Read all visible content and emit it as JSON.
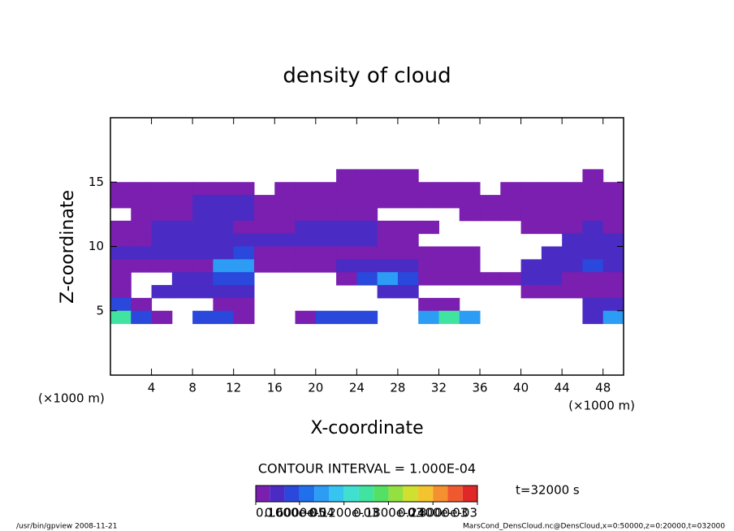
{
  "chart_data": {
    "type": "contour",
    "title": "density of cloud",
    "x_label": "X-coordinate",
    "y_label": "Z-coordinate",
    "x_unit": "(×1000 m)",
    "y_unit": "(×1000 m)",
    "contour_interval": "CONTOUR INTERVAL = 1.000E-04",
    "time_label": "t=32000 s",
    "footer_left": "/usr/bin/gpview  2008-11-21",
    "footer_right": "MarsCond_DensCloud.nc@DensCloud,x=0:50000,z=0:20000,t=032000",
    "xlim": [
      0,
      50
    ],
    "ylim": [
      0,
      20
    ],
    "xticks": [
      4,
      8,
      12,
      16,
      20,
      24,
      28,
      32,
      36,
      40,
      44,
      48
    ],
    "yticks": [
      5,
      10,
      15
    ],
    "x": [
      1,
      3,
      5,
      7,
      9,
      11,
      13,
      15,
      17,
      19,
      21,
      23,
      25,
      27,
      29,
      31,
      33,
      35,
      37,
      39,
      41,
      43,
      45,
      47,
      49
    ],
    "y": [
      15.5,
      14.5,
      13.5,
      12.5,
      11.5,
      10.5,
      9.5,
      8.5,
      7.5,
      6.5,
      5.5,
      4.5
    ],
    "values": [
      [
        0,
        0,
        0,
        0,
        0,
        0,
        0,
        0,
        0,
        0,
        0,
        1e-05,
        1e-05,
        1e-05,
        1e-05,
        0,
        0,
        0,
        0,
        0,
        0,
        0,
        0,
        1e-05,
        0
      ],
      [
        1e-05,
        1e-05,
        1e-05,
        1e-05,
        1e-05,
        1e-05,
        1e-05,
        0,
        1e-05,
        1e-05,
        1e-05,
        1e-05,
        1e-05,
        1e-05,
        1e-05,
        1e-05,
        1e-05,
        1e-05,
        0,
        1e-05,
        1e-05,
        1e-05,
        1e-05,
        1e-05,
        1e-05
      ],
      [
        1e-05,
        1e-05,
        1e-05,
        1e-05,
        3e-05,
        3e-05,
        3e-05,
        1e-05,
        1e-05,
        1e-05,
        1e-05,
        1e-05,
        1e-05,
        1e-05,
        1e-05,
        1e-05,
        1e-05,
        1e-05,
        1e-05,
        1e-05,
        1e-05,
        1e-05,
        1e-05,
        1e-05,
        1e-05
      ],
      [
        0,
        1e-05,
        1e-05,
        1e-05,
        3e-05,
        3e-05,
        3e-05,
        1e-05,
        1e-05,
        1e-05,
        1e-05,
        1e-05,
        1e-05,
        0,
        0,
        0,
        0,
        1e-05,
        1e-05,
        1e-05,
        1e-05,
        1e-05,
        1e-05,
        1e-05,
        1e-05
      ],
      [
        1e-05,
        1e-05,
        3e-05,
        3e-05,
        3e-05,
        3e-05,
        1e-05,
        1e-05,
        1e-05,
        3e-05,
        3e-05,
        3e-05,
        3e-05,
        1e-05,
        1e-05,
        1e-05,
        0,
        0,
        0,
        0,
        1e-05,
        1e-05,
        1e-05,
        3e-05,
        1e-05
      ],
      [
        1e-05,
        1e-05,
        3e-05,
        3e-05,
        3e-05,
        3e-05,
        3e-05,
        3e-05,
        3e-05,
        3e-05,
        3e-05,
        3e-05,
        3e-05,
        1e-05,
        1e-05,
        0,
        0,
        0,
        0,
        0,
        0,
        0,
        3e-05,
        3e-05,
        3e-05
      ],
      [
        3e-05,
        3e-05,
        3e-05,
        3e-05,
        3e-05,
        3e-05,
        5e-05,
        1e-05,
        1e-05,
        1e-05,
        1e-05,
        1e-05,
        1e-05,
        1e-05,
        1e-05,
        1e-05,
        1e-05,
        1e-05,
        0,
        0,
        0,
        3e-05,
        3e-05,
        3e-05,
        3e-05
      ],
      [
        1e-05,
        1e-05,
        1e-05,
        1e-05,
        1e-05,
        8e-05,
        8e-05,
        1e-05,
        1e-05,
        1e-05,
        1e-05,
        3e-05,
        3e-05,
        3e-05,
        3e-05,
        1e-05,
        1e-05,
        1e-05,
        0,
        0,
        3e-05,
        3e-05,
        3e-05,
        5e-05,
        3e-05
      ],
      [
        1e-05,
        0,
        0,
        3e-05,
        3e-05,
        5e-05,
        5e-05,
        0,
        0,
        0,
        0,
        1e-05,
        5e-05,
        8e-05,
        5e-05,
        1e-05,
        1e-05,
        1e-05,
        1e-05,
        1e-05,
        3e-05,
        3e-05,
        1e-05,
        1e-05,
        1e-05
      ],
      [
        1e-05,
        0,
        3e-05,
        3e-05,
        3e-05,
        3e-05,
        3e-05,
        0,
        0,
        0,
        0,
        0,
        0,
        3e-05,
        3e-05,
        0,
        0,
        0,
        0,
        0,
        1e-05,
        1e-05,
        1e-05,
        1e-05,
        1e-05
      ],
      [
        5e-05,
        1e-05,
        0,
        0,
        0,
        1e-05,
        1e-05,
        0,
        0,
        0,
        0,
        0,
        0,
        0,
        0,
        1e-05,
        1e-05,
        0,
        0,
        0,
        0,
        0,
        0,
        3e-05,
        3e-05
      ],
      [
        0.00015,
        5e-05,
        1e-05,
        0,
        5e-05,
        5e-05,
        1e-05,
        0,
        0,
        1e-05,
        5e-05,
        5e-05,
        5e-05,
        0,
        0,
        8e-05,
        0.00015,
        8e-05,
        0,
        0,
        0,
        0,
        0,
        3e-05,
        8e-05
      ]
    ],
    "levels": [
      1e-06,
      2e-05,
      4e-05,
      6e-05,
      8e-05,
      0.0001,
      0.00012,
      0.00014,
      0.00016,
      0.00018,
      0.0002,
      0.00022,
      0.00024,
      0.00026,
      0.00028,
      0.0003
    ],
    "colors": [
      "#7a1fb0",
      "#4a2cc4",
      "#2a48dc",
      "#2070ec",
      "#2c9cf4",
      "#38c4f0",
      "#40e0d0",
      "#40e4a0",
      "#54e064",
      "#94e040",
      "#d0e030",
      "#f4c430",
      "#f49030",
      "#f05830",
      "#e02828"
    ],
    "colorbar_ticks": [
      {
        "value": 1e-06,
        "label": "0.1000e-05"
      },
      {
        "value": 6e-05,
        "label": "0.6000e-04"
      },
      {
        "value": 0.00012,
        "label": "0.1200e-03"
      },
      {
        "value": 0.00018,
        "label": "0.1800e-03"
      },
      {
        "value": 0.00024,
        "label": "0.2400e-03"
      },
      {
        "value": 0.0003,
        "label": "0.3000e-03"
      }
    ]
  }
}
